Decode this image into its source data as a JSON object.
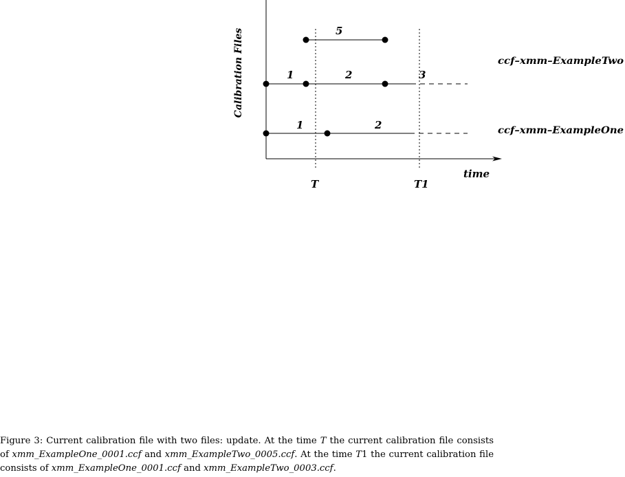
{
  "diagram": {
    "y_axis_label": "Calibration Files",
    "x_axis_label": "time",
    "time_markers": [
      "T",
      "T1"
    ],
    "files": [
      {
        "name": "ccf–xmm–ExampleTwo",
        "segments": [
          "1",
          "2",
          "3"
        ],
        "extra_segment": "5"
      },
      {
        "name": "ccf–xmm–ExampleOne",
        "segments": [
          "1",
          "2"
        ]
      }
    ]
  },
  "caption": {
    "part1": "Figure 3: Current calibration file with two files: update. At the time ",
    "t_symbol": "T",
    "part2": " the current calibration file consists of ",
    "file_one": "xmm_ExampleOne_0001.ccf",
    "and1": " and ",
    "file_two_a": "xmm_ExampleTwo_0005.ccf",
    "part3": ". At the time ",
    "t1_symbol": "T",
    "t1_suffix": "1",
    "part4": " the current calibration file consists of ",
    "file_one_b": "xmm_ExampleOne_0001.ccf",
    "and2": " and ",
    "file_two_b": "xmm_ExampleTwo_0003.ccf",
    "end": "."
  }
}
